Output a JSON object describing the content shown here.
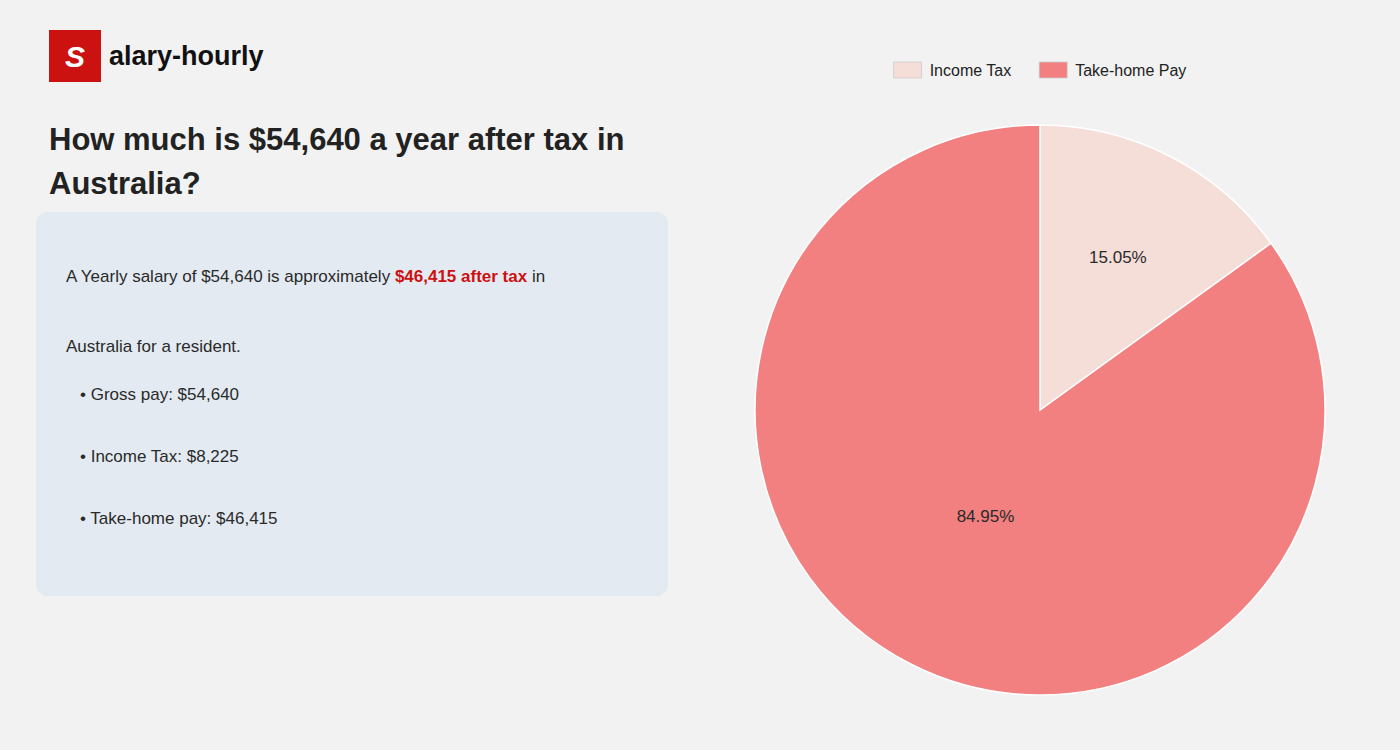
{
  "chart_data": {
    "type": "pie",
    "title": "How much is $54,640 a year after tax in\nAustralia?",
    "categories": [
      "Income Tax",
      "Take-home Pay"
    ],
    "values": [
      15.05,
      84.95
    ],
    "value_labels": [
      "15.05%",
      "84.95%"
    ],
    "colors": [
      "#f5ddd8",
      "#f28080"
    ],
    "data_labels": true,
    "legend": "top",
    "annotations": [
      {
        "text": "S",
        "color": "#cc1111"
      },
      {
        "text": "alary-hourly"
      },
      {
        "text": "A Yearly salary of $54,640 is approximately "
      },
      {
        "text": "$46,415 after tax",
        "color": "#cc1111"
      },
      {
        "text": " in"
      },
      {
        "text": "Australia for a resident."
      },
      {
        "text": "• Gross pay: $54,640"
      },
      {
        "text": "• Income Tax: $8,225"
      },
      {
        "text": "• Take-home pay: $46,415"
      }
    ]
  }
}
